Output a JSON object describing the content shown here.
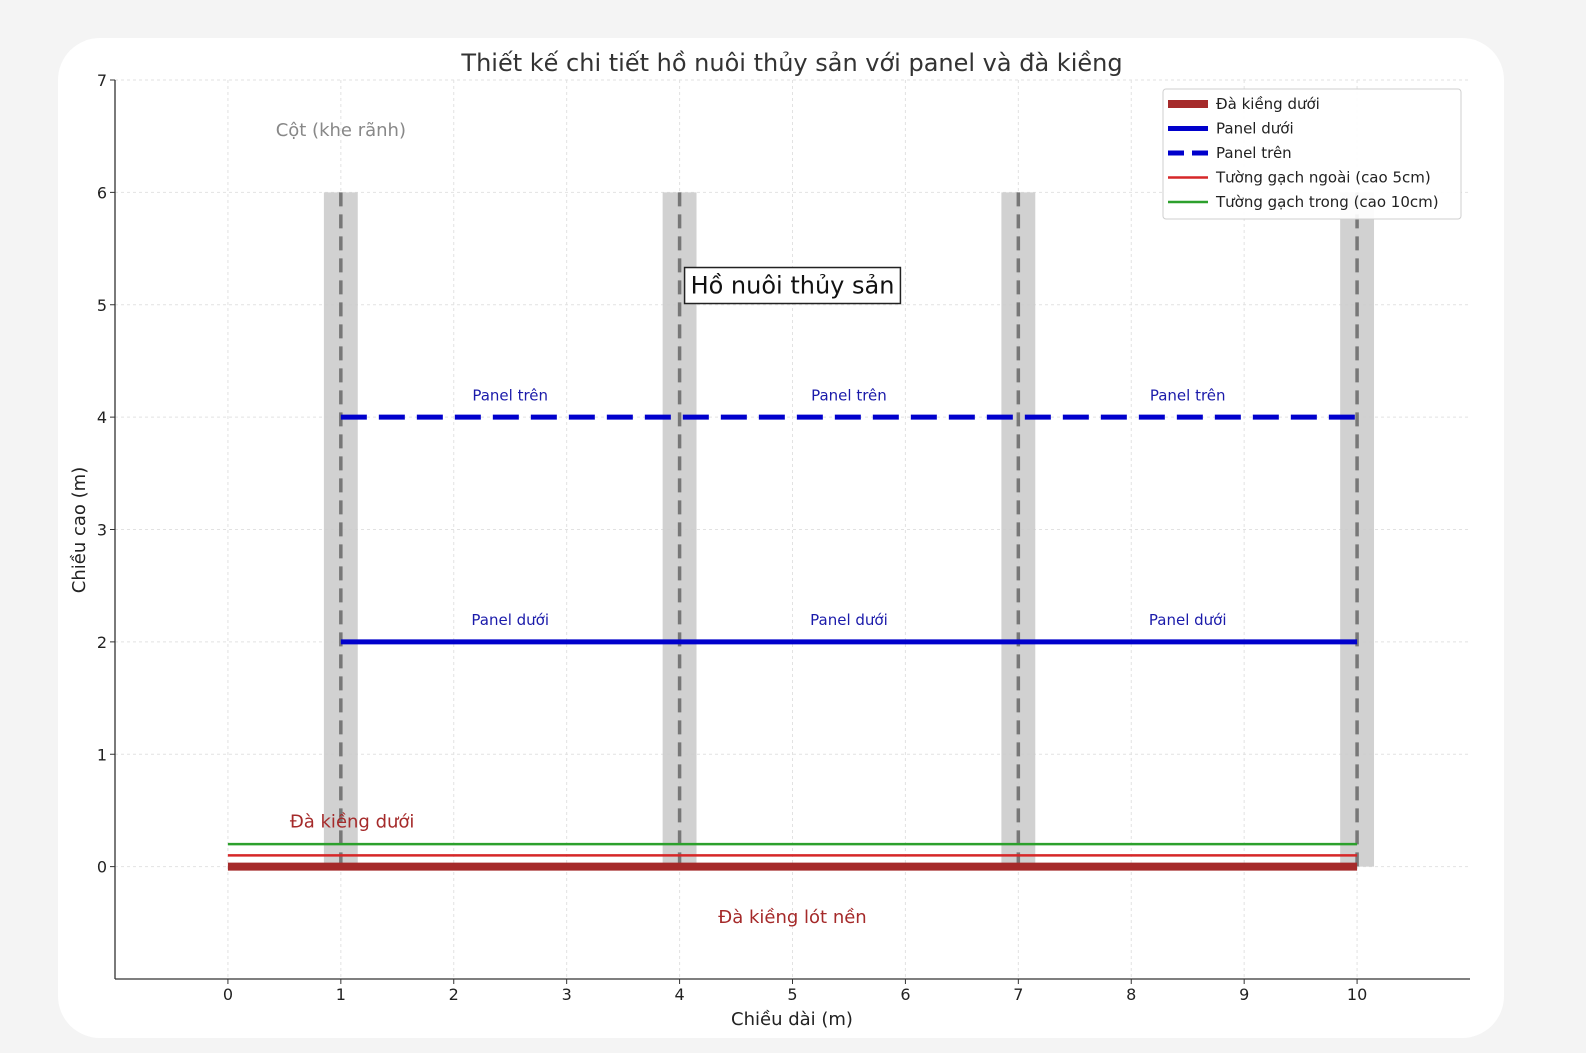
{
  "chart_data": {
    "type": "line",
    "title": "Thiết kế chi tiết hồ nuôi thủy sản với panel và đà kiềng",
    "xlabel": "Chiều dài (m)",
    "ylabel": "Chiều cao (m)",
    "xlim": [
      -1,
      11
    ],
    "ylim": [
      -1,
      7
    ],
    "xticks": [
      0,
      1,
      2,
      3,
      4,
      5,
      6,
      7,
      8,
      9,
      10
    ],
    "yticks": [
      0,
      1,
      2,
      3,
      4,
      5,
      6,
      7
    ],
    "grid": true,
    "legend_position": "top-right",
    "columns": {
      "label": "Cột (khe rãnh)",
      "x": [
        1,
        4,
        7,
        10
      ],
      "width": 0.3,
      "y_range": [
        0,
        6
      ],
      "fill_color": "#cccccc",
      "centerline_color": "#777777"
    },
    "series": [
      {
        "name": "Đà kiềng dưới",
        "x": [
          0,
          10
        ],
        "y": [
          0,
          0
        ],
        "color": "#a52a2a",
        "style": "solid",
        "weight": "thick"
      },
      {
        "name": "Panel dưới",
        "x": [
          1,
          10
        ],
        "y": [
          2,
          2
        ],
        "color": "#0000cc",
        "style": "solid",
        "weight": "medium"
      },
      {
        "name": "Panel trên",
        "x": [
          1,
          10
        ],
        "y": [
          4,
          4
        ],
        "color": "#0000cc",
        "style": "dashed",
        "weight": "medium"
      },
      {
        "name": "Tường gạch ngoài (cao 5cm)",
        "x": [
          0,
          10
        ],
        "y": [
          0.1,
          0.1
        ],
        "color": "#d62728",
        "style": "solid",
        "weight": "thin"
      },
      {
        "name": "Tường gạch trong (cao 10cm)",
        "x": [
          0,
          10
        ],
        "y": [
          0.2,
          0.2
        ],
        "color": "#2ca02c",
        "style": "solid",
        "weight": "thin"
      }
    ],
    "annotations": [
      {
        "text": "Cột (khe rãnh)",
        "x": 1,
        "y": 6.5,
        "color": "#888888",
        "size": "medium"
      },
      {
        "text": "Hồ nuôi thủy sản",
        "x": 5,
        "y": 5.1,
        "color": "#111111",
        "size": "large",
        "boxed": true
      },
      {
        "text": "Panel trên",
        "x": 2.5,
        "y": 4.15,
        "color": "#1a1aaa",
        "size": "small"
      },
      {
        "text": "Panel trên",
        "x": 5.5,
        "y": 4.15,
        "color": "#1a1aaa",
        "size": "small"
      },
      {
        "text": "Panel trên",
        "x": 8.5,
        "y": 4.15,
        "color": "#1a1aaa",
        "size": "small"
      },
      {
        "text": "Panel dưới",
        "x": 2.5,
        "y": 2.15,
        "color": "#1a1aaa",
        "size": "small"
      },
      {
        "text": "Panel dưới",
        "x": 5.5,
        "y": 2.15,
        "color": "#1a1aaa",
        "size": "small"
      },
      {
        "text": "Panel dưới",
        "x": 8.5,
        "y": 2.15,
        "color": "#1a1aaa",
        "size": "small"
      },
      {
        "text": "Đà kiềng dưới",
        "x": 1.1,
        "y": 0.35,
        "color": "#a52a2a",
        "size": "medium"
      },
      {
        "text": "Đà kiềng lót nền",
        "x": 5,
        "y": -0.5,
        "color": "#a52a2a",
        "size": "medium"
      }
    ]
  }
}
